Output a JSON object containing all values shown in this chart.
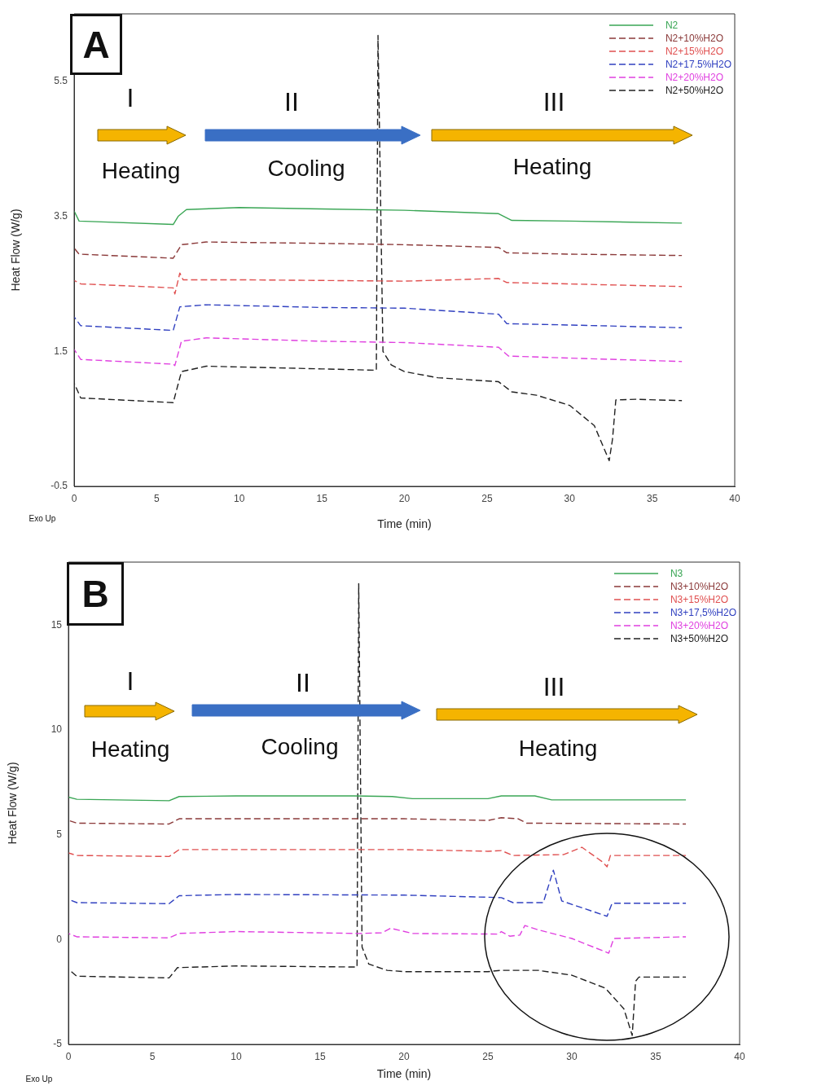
{
  "chart_data": [
    {
      "type": "line",
      "xlabel": "Time (min)",
      "ylabel": "Heat Flow (W/g)",
      "xlim": [
        0,
        40
      ],
      "xticks": [
        0,
        5,
        10,
        15,
        20,
        25,
        30,
        35,
        40
      ],
      "ylim": [
        -0.5,
        6.5
      ],
      "yticks": [
        -0.5,
        1.5,
        3.5,
        5.5
      ],
      "legend": "top right",
      "marker": "none",
      "annotations": [
        "A",
        "I",
        "II",
        "III",
        "Heating",
        "Cooling",
        "Heating",
        "Exo Up"
      ],
      "series": [
        {
          "name": "N2",
          "color": "#3aa655",
          "line_style": "solid",
          "x": [
            0,
            0.3,
            6,
            6.3,
            6.8,
            10,
            15,
            20,
            25.7,
            26.5,
            30,
            36.8
          ],
          "values": [
            3.58,
            3.43,
            3.38,
            3.5,
            3.6,
            3.63,
            3.61,
            3.59,
            3.54,
            3.44,
            3.43,
            3.4
          ]
        },
        {
          "name": "N2+10%H2O",
          "color": "#8b3a3a",
          "line_style": "dashed",
          "x": [
            0,
            0.3,
            6,
            6.5,
            8,
            15,
            20,
            25.7,
            26.2,
            30,
            36.8
          ],
          "values": [
            3.03,
            2.94,
            2.88,
            3.08,
            3.12,
            3.1,
            3.08,
            3.04,
            2.96,
            2.94,
            2.92
          ]
        },
        {
          "name": "N2+15%H2O",
          "color": "#e05050",
          "line_style": "dashed",
          "x": [
            0,
            0.4,
            6,
            6.1,
            6.4,
            6.6,
            10,
            20,
            25.7,
            26.2,
            36.8
          ],
          "values": [
            2.55,
            2.5,
            2.44,
            2.35,
            2.66,
            2.56,
            2.56,
            2.54,
            2.58,
            2.52,
            2.46
          ]
        },
        {
          "name": "N2+17.5%H2O",
          "color": "#3040c0",
          "line_style": "dashed",
          "x": [
            0,
            0.4,
            6,
            6.4,
            8,
            15,
            20,
            25.7,
            26.2,
            30,
            36.8
          ],
          "values": [
            2.01,
            1.88,
            1.81,
            2.16,
            2.19,
            2.15,
            2.14,
            2.05,
            1.91,
            1.89,
            1.85
          ]
        },
        {
          "name": "N2+20%H2O",
          "color": "#e040e0",
          "line_style": "dashed",
          "x": [
            0,
            0.4,
            6,
            6.1,
            6.5,
            8,
            15,
            20,
            25.7,
            26.3,
            30,
            36.8
          ],
          "values": [
            1.53,
            1.38,
            1.31,
            1.29,
            1.65,
            1.7,
            1.65,
            1.63,
            1.56,
            1.43,
            1.4,
            1.35
          ]
        },
        {
          "name": "N2+50%H2O",
          "color": "#202020",
          "line_style": "dashed",
          "x": [
            0,
            0.4,
            6,
            6.5,
            8,
            15,
            18.3,
            18.4,
            18.7,
            19.2,
            20,
            22,
            25.7,
            26.5,
            28,
            30,
            31.5,
            32.4,
            32.6,
            32.8,
            34,
            36.8
          ],
          "values": [
            1.03,
            0.81,
            0.74,
            1.2,
            1.28,
            1.24,
            1.22,
            6.18,
            1.5,
            1.3,
            1.2,
            1.11,
            1.05,
            0.9,
            0.85,
            0.7,
            0.4,
            -0.12,
            0.2,
            0.78,
            0.79,
            0.77
          ]
        }
      ]
    },
    {
      "type": "line",
      "xlabel": "Time (min)",
      "ylabel": "Heat Flow (W/g)",
      "xlim": [
        0,
        40
      ],
      "xticks": [
        0,
        5,
        10,
        15,
        20,
        25,
        30,
        35,
        40
      ],
      "ylim": [
        -5,
        18
      ],
      "yticks": [
        -5,
        0,
        5,
        10,
        15
      ],
      "legend": "top right",
      "marker": "none",
      "annotations": [
        "B",
        "I",
        "II",
        "III",
        "Heating",
        "Cooling",
        "Heating",
        "Exo Up"
      ],
      "series": [
        {
          "name": "N3",
          "color": "#3aa655",
          "line_style": "solid",
          "x": [
            0,
            0.5,
            6,
            6.6,
            10,
            17,
            19.3,
            20.5,
            25,
            25.8,
            27.8,
            28.8,
            36.8
          ],
          "values": [
            6.79,
            6.69,
            6.62,
            6.82,
            6.85,
            6.85,
            6.82,
            6.72,
            6.72,
            6.85,
            6.85,
            6.66,
            6.66
          ]
        },
        {
          "name": "N3+10%H2O",
          "color": "#8b3a3a",
          "line_style": "dashed",
          "x": [
            0,
            0.5,
            6,
            6.6,
            20,
            25,
            25.8,
            26.8,
            27.3,
            36.8
          ],
          "values": [
            5.68,
            5.55,
            5.51,
            5.76,
            5.76,
            5.68,
            5.81,
            5.76,
            5.55,
            5.51
          ]
        },
        {
          "name": "N3+15%H2O",
          "color": "#e05050",
          "line_style": "dashed",
          "x": [
            0,
            0.5,
            6,
            6.6,
            20,
            25,
            25.8,
            26.5,
            29.5,
            30.6,
            31.8,
            32.1,
            32.3,
            36.8
          ],
          "values": [
            4.13,
            4.01,
            3.96,
            4.29,
            4.29,
            4.21,
            4.24,
            4.01,
            4.05,
            4.4,
            3.72,
            3.47,
            4.01,
            4.01
          ]
        },
        {
          "name": "N3+17,5%H2O",
          "color": "#3040c0",
          "line_style": "dashed",
          "x": [
            0,
            0.5,
            6,
            6.6,
            10,
            20,
            25.8,
            26.5,
            28.3,
            28.9,
            29.4,
            32.1,
            32.4,
            36.8
          ],
          "values": [
            1.92,
            1.76,
            1.71,
            2.09,
            2.15,
            2.12,
            2,
            1.76,
            1.76,
            3.31,
            1.84,
            1.11,
            1.73,
            1.73
          ]
        },
        {
          "name": "N3+20%H2O",
          "color": "#e040e0",
          "line_style": "dashed",
          "x": [
            0,
            0.5,
            6,
            6.6,
            10,
            17.3,
            18.7,
            19.2,
            20.5,
            25.6,
            25.8,
            26.3,
            26.9,
            27.2,
            28,
            30,
            32.2,
            32.5,
            36.8
          ],
          "values": [
            0.29,
            0.13,
            0.08,
            0.29,
            0.38,
            0.29,
            0.32,
            0.54,
            0.29,
            0.26,
            0.38,
            0.16,
            0.21,
            0.67,
            0.46,
            0.05,
            -0.65,
            0.05,
            0.13
          ]
        },
        {
          "name": "N3+50%H2O",
          "color": "#202020",
          "line_style": "dashed",
          "x": [
            0,
            0.5,
            6,
            6.5,
            10,
            17.2,
            17.3,
            17.5,
            17.9,
            19,
            20,
            25,
            25.8,
            28,
            30,
            32,
            33.1,
            33.6,
            33.8,
            34,
            36.8
          ],
          "values": [
            -1.42,
            -1.75,
            -1.83,
            -1.34,
            -1.26,
            -1.31,
            16.97,
            -0.36,
            -1.17,
            -1.47,
            -1.53,
            -1.53,
            -1.47,
            -1.47,
            -1.7,
            -2.32,
            -3.3,
            -4.57,
            -1.99,
            -1.79,
            -1.79
          ]
        }
      ]
    }
  ]
}
